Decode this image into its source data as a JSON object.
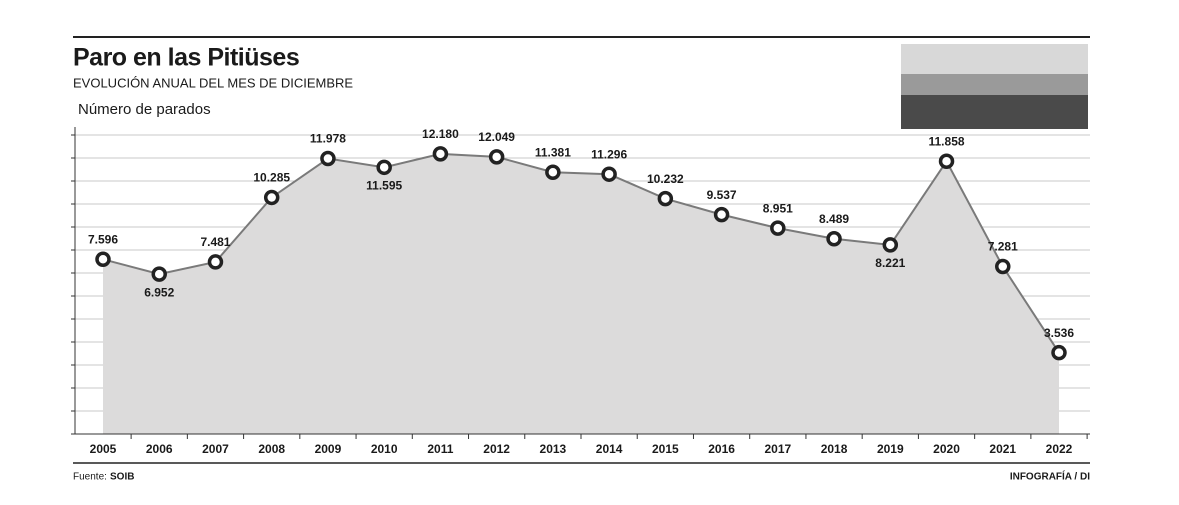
{
  "chart_data": {
    "type": "line",
    "title": "Paro en las Pitiüses",
    "subtitle": "EVOLUCIÓN ANUAL DEL MES DE DICIEMBRE",
    "y_label": "Número de parados",
    "source_label": "Fuente:",
    "source": "SOIB",
    "credit": "INFOGRAFÍA / DI",
    "categories": [
      "2005",
      "2006",
      "2007",
      "2008",
      "2009",
      "2010",
      "2011",
      "2012",
      "2013",
      "2014",
      "2015",
      "2016",
      "2017",
      "2018",
      "2019",
      "2020",
      "2021",
      "2022"
    ],
    "values": [
      7596,
      6952,
      7481,
      10285,
      11978,
      11595,
      12180,
      12049,
      11381,
      11296,
      10232,
      9537,
      8951,
      8489,
      8221,
      11858,
      7281,
      3536
    ],
    "value_labels": [
      "7.596",
      "6.952",
      "7.481",
      "10.285",
      "11.978",
      "11.595",
      "12.180",
      "12.049",
      "11.381",
      "11.296",
      "10.232",
      "9.537",
      "8.951",
      "8.489",
      "8.221",
      "11.858",
      "7.281",
      "3.536"
    ],
    "color": "#7a7a7a",
    "fill": "#dcdbdb",
    "ylim": [
      0,
      13000
    ],
    "yticks": [
      0,
      1000,
      2000,
      3000,
      4000,
      5000,
      6000,
      7000,
      8000,
      9000,
      10000,
      11000,
      12000,
      13000
    ],
    "grid": true
  }
}
